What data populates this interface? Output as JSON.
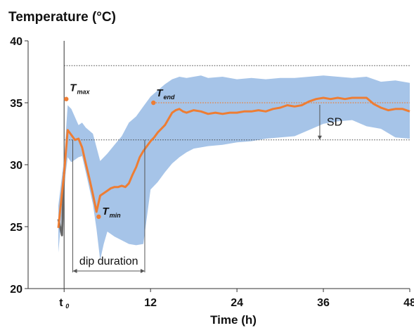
{
  "chart_data": {
    "type": "line",
    "title": "Temperature (°C)",
    "xlabel": "Time (h)",
    "ylabel": "",
    "xlim": [
      -5,
      48
    ],
    "ylim": [
      20,
      40
    ],
    "x_ticks": [
      {
        "value": 0,
        "label": "t",
        "sub": "0"
      },
      {
        "value": 12,
        "label": "12"
      },
      {
        "value": 24,
        "label": "24"
      },
      {
        "value": 36,
        "label": "36"
      },
      {
        "value": 48,
        "label": "48"
      }
    ],
    "y_ticks": [
      20,
      25,
      30,
      35,
      40
    ],
    "grid": false,
    "colors": {
      "mean": "#ee7d33",
      "band": "#a6c4e8",
      "pre": "#666666",
      "ref": "#444444"
    },
    "series": [
      {
        "role": "mean",
        "x": [
          -0.8,
          0,
          0.5,
          1,
          1.5,
          2,
          2.5,
          3,
          3.5,
          4,
          4.5,
          5,
          5.5,
          6,
          6.5,
          7,
          7.5,
          8,
          8.5,
          9,
          9.5,
          10,
          10.5,
          11,
          11.5,
          12,
          12.5,
          13,
          13.5,
          14,
          14.5,
          15,
          15.5,
          16,
          16.5,
          17,
          18,
          19,
          20,
          21,
          22,
          23,
          24,
          25,
          26,
          27,
          28,
          29,
          30,
          31,
          32,
          33,
          34,
          35,
          36,
          37,
          38,
          39,
          40,
          41,
          42,
          43,
          44,
          45,
          46,
          47,
          48
        ],
        "y": [
          24.9,
          29.3,
          32.8,
          32.4,
          32.0,
          32.1,
          31.4,
          30.1,
          28.9,
          27.6,
          26.2,
          27.5,
          27.7,
          27.9,
          28.1,
          28.2,
          28.2,
          28.3,
          28.2,
          28.5,
          29.2,
          29.8,
          30.6,
          31.1,
          31.5,
          31.9,
          32.2,
          32.6,
          32.9,
          33.2,
          33.7,
          34.2,
          34.4,
          34.5,
          34.3,
          34.2,
          34.4,
          34.3,
          34.1,
          34.2,
          34.1,
          34.2,
          34.2,
          34.3,
          34.3,
          34.4,
          34.3,
          34.5,
          34.6,
          34.8,
          34.7,
          34.8,
          35.1,
          35.3,
          35.4,
          35.3,
          35.4,
          35.3,
          35.4,
          35.4,
          35.4,
          34.9,
          34.6,
          34.4,
          34.5,
          34.5,
          34.3
        ]
      },
      {
        "role": "band_upper",
        "x": [
          -0.8,
          0,
          0.5,
          1,
          2,
          2.5,
          3,
          4,
          5,
          6,
          7,
          8,
          9,
          10,
          11,
          12,
          13,
          14,
          15,
          16,
          17,
          18,
          19,
          20,
          22,
          24,
          26,
          28,
          30,
          32,
          34,
          36,
          38,
          40,
          42,
          44,
          46,
          48
        ],
        "y": [
          26.7,
          30.5,
          34.8,
          34.5,
          33.2,
          33.4,
          33.0,
          32.5,
          30.3,
          30.9,
          31.6,
          32.3,
          33.4,
          33.9,
          34.7,
          35.5,
          36.0,
          36.5,
          36.9,
          37.1,
          37.0,
          37.1,
          37.2,
          37.0,
          37.1,
          36.9,
          37.0,
          36.9,
          37.0,
          37.0,
          37.1,
          37.2,
          37.1,
          37.0,
          37.1,
          36.7,
          36.8,
          36.6
        ]
      },
      {
        "role": "band_lower",
        "x": [
          -0.8,
          0,
          0.5,
          1,
          2,
          2.5,
          3,
          4,
          4.5,
          5,
          5.5,
          6,
          7,
          8,
          9,
          10,
          11,
          12,
          13,
          14,
          15,
          16,
          17,
          18,
          19,
          20,
          22,
          24,
          26,
          28,
          30,
          32,
          34,
          36,
          38,
          40,
          42,
          44,
          46,
          48
        ],
        "y": [
          22.9,
          28.3,
          30.6,
          30.2,
          30.6,
          30.7,
          29.4,
          26.8,
          24.8,
          22.3,
          23.6,
          24.6,
          24.2,
          23.9,
          23.6,
          23.5,
          23.6,
          28.0,
          28.6,
          29.4,
          30.1,
          30.6,
          31.0,
          31.3,
          31.4,
          31.5,
          31.6,
          31.8,
          31.9,
          32.1,
          32.2,
          32.3,
          32.8,
          33.3,
          33.5,
          33.6,
          33.1,
          32.9,
          32.2,
          32.1
        ]
      },
      {
        "role": "pre",
        "x": [
          -0.8,
          -0.3,
          0
        ],
        "y": [
          25.6,
          24.3,
          29.4
        ]
      }
    ],
    "reference_lines": [
      {
        "y": 38.0,
        "xrange": [
          0,
          48
        ],
        "style": "dotted"
      },
      {
        "y": 35.0,
        "xrange": [
          12.4,
          48
        ],
        "style": "dotted-orange"
      },
      {
        "y": 32.0,
        "xrange": [
          0,
          48
        ],
        "style": "dotted"
      }
    ],
    "annotations": [
      {
        "text": "T",
        "sub": "max",
        "marker": {
          "x": 0.3,
          "y": 35.3
        }
      },
      {
        "text": "T",
        "sub": "end",
        "marker": {
          "x": 12.4,
          "y": 35.0
        }
      },
      {
        "text": "T",
        "sub": "min",
        "marker": {
          "x": 4.8,
          "y": 25.8
        }
      }
    ],
    "dip_duration": {
      "label": "dip duration",
      "x_start": 1.2,
      "x_end": 11.2
    },
    "sd_marker": {
      "label": "SD",
      "x": 35.5,
      "y_from": 35.0,
      "y_to": 32.0
    }
  }
}
